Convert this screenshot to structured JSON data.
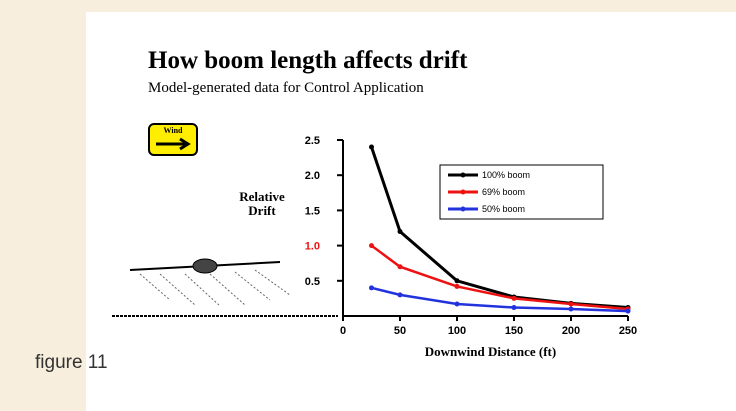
{
  "chart_data": {
    "type": "line",
    "title": "How boom length affects drift",
    "subtitle": "Model-generated data for Control Application",
    "annotations": [
      {
        "text": "Wind"
      }
    ],
    "y_label": [
      "Relative",
      "Drift"
    ],
    "x_label": "Downwind Distance (ft)",
    "x": [
      25,
      50,
      100,
      150,
      200,
      250
    ],
    "series": [
      {
        "name": "100% boom",
        "color": "#000000",
        "values": [
          2.4,
          1.2,
          0.5,
          0.27,
          0.18,
          0.12
        ]
      },
      {
        "name": "69% boom",
        "color": "#ee1111",
        "values": [
          1.0,
          0.7,
          0.42,
          0.25,
          0.17,
          0.1
        ]
      },
      {
        "name": "50% boom",
        "color": "#2233dd",
        "values": [
          0.4,
          0.3,
          0.17,
          0.12,
          0.1,
          0.07
        ]
      }
    ],
    "xlim": [
      0,
      250
    ],
    "xticks": [
      0,
      50,
      100,
      150,
      200,
      250
    ],
    "ylim": [
      0,
      2.5
    ],
    "yticks": [
      {
        "value": 0.5,
        "label": "0.5"
      },
      {
        "value": 1,
        "label": "1.0",
        "color": "#ee1111"
      },
      {
        "value": 1.5,
        "label": "1.5"
      },
      {
        "value": 2,
        "label": "2.0"
      },
      {
        "value": 2.5,
        "label": "2.5"
      }
    ],
    "legend": "upper right"
  },
  "figure_caption": "figure 11"
}
